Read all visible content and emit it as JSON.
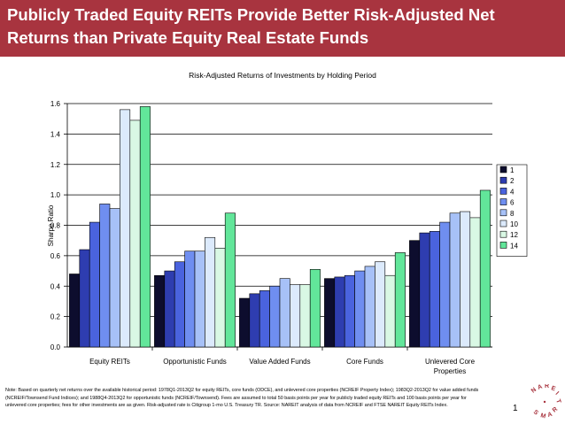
{
  "slide": {
    "title_line1": "Publicly Traded Equity REITs Provide Better Risk-Adjusted Net",
    "title_line2": "Returns than Private Equity Real Estate Funds",
    "note": "Note: Based on quarterly net returns over the available historical period: 1978Q1-2013Q2 for equity REITs, core funds (ODCE), and unlevered core properties (NCREIF Property Index); 1983Q2-2013Q2 for value added funds (NCREIF/Townsend Fund Indices); and 1988Q4-2013Q2 for opportunistic funds (NCREIF/Townsend). Fees are assumed to total 50 basis points per year for publicly traded equity REITs and 100 basis points per year for unlevered core properties; fees for other investments are as given. Risk-adjusted rate is Citigroup 1-mo U.S. Treasury TR. Source: NAREIT analysis of data from NCREIF and FTSE NAREIT Equity REITs Index.",
    "page_number": "1",
    "logo_text": "NAREIT"
  },
  "chart_data": {
    "type": "bar",
    "title": "Risk-Adjusted Returns of Investments by Holding Period",
    "xlabel": "",
    "ylabel": "Sharpe Ratio",
    "ylim": [
      0,
      1.6
    ],
    "yticks": [
      "0.0",
      "0.2",
      "0.4",
      "0.6",
      "0.8",
      "1.0",
      "1.2",
      "1.4",
      "1.6"
    ],
    "grid": true,
    "legend_position": "right",
    "categories": [
      "Equity REITs",
      "Opportunistic Funds",
      "Value Added Funds",
      "Core Funds",
      "Unlevered Core Properties"
    ],
    "series": [
      {
        "name": "1",
        "color": "#0d0d2e",
        "values": [
          0.48,
          0.47,
          0.32,
          0.45,
          0.7
        ]
      },
      {
        "name": "2",
        "color": "#2e3db0",
        "values": [
          0.64,
          0.5,
          0.35,
          0.46,
          0.75
        ]
      },
      {
        "name": "4",
        "color": "#4a63de",
        "values": [
          0.82,
          0.56,
          0.37,
          0.47,
          0.76
        ]
      },
      {
        "name": "6",
        "color": "#6f8ef0",
        "values": [
          0.94,
          0.63,
          0.4,
          0.5,
          0.82
        ]
      },
      {
        "name": "8",
        "color": "#a7c1f7",
        "values": [
          0.91,
          0.63,
          0.45,
          0.53,
          0.88
        ]
      },
      {
        "name": "10",
        "color": "#dceafc",
        "values": [
          1.56,
          0.72,
          0.41,
          0.56,
          0.89
        ]
      },
      {
        "name": "12",
        "color": "#d9f8e4",
        "values": [
          1.49,
          0.65,
          0.41,
          0.47,
          0.85
        ]
      },
      {
        "name": "14",
        "color": "#62e69a",
        "values": [
          1.58,
          0.88,
          0.51,
          0.62,
          1.03
        ]
      }
    ]
  }
}
